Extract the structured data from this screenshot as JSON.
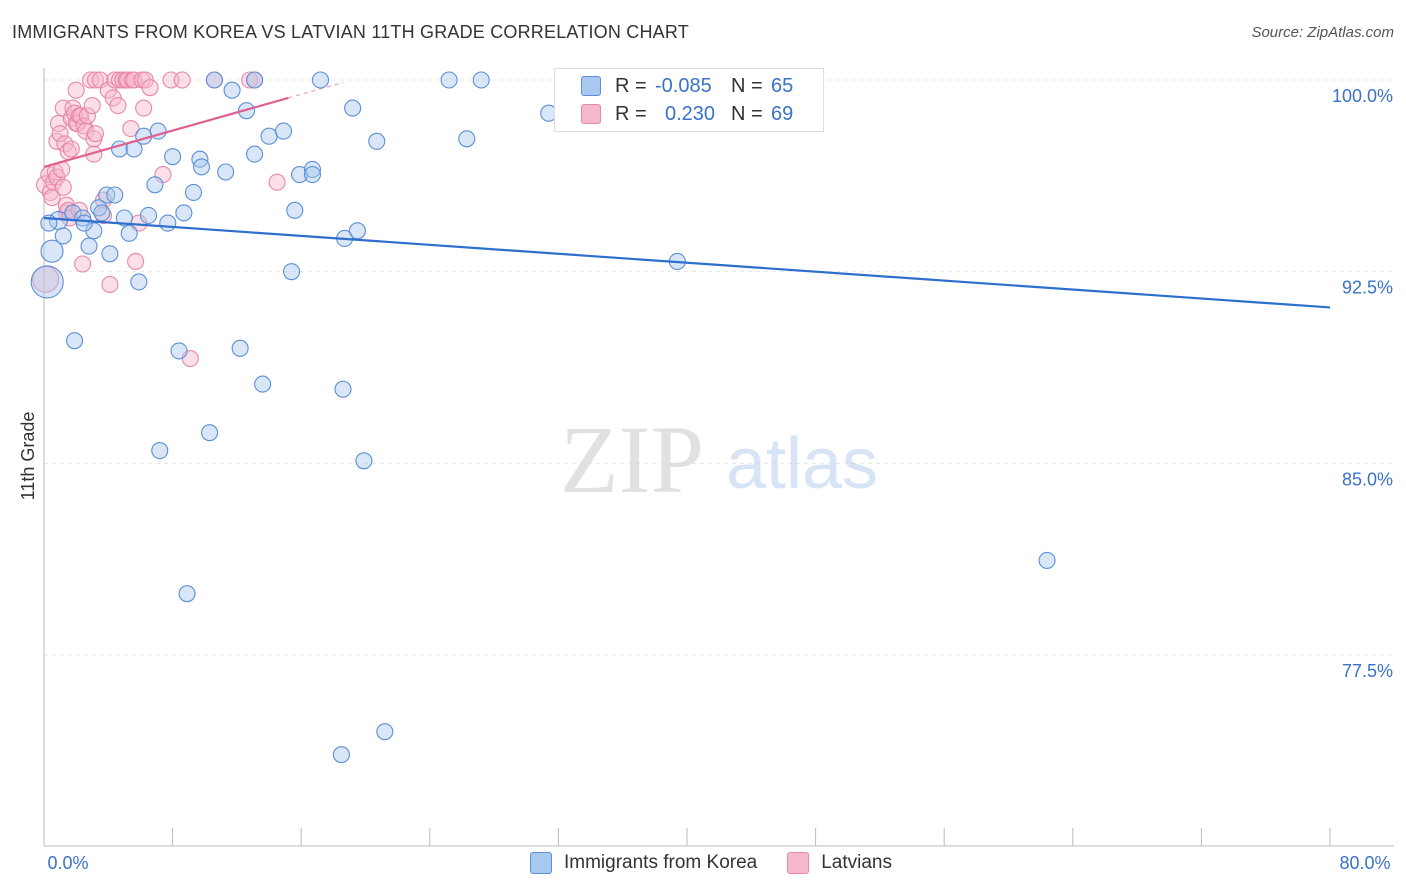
{
  "title": "IMMIGRANTS FROM KOREA VS LATVIAN 11TH GRADE CORRELATION CHART",
  "source": "Source: ZipAtlas.com",
  "watermark": {
    "zip": "ZIP",
    "atlas": "atlas"
  },
  "legend": {
    "series1": {
      "r_label": "R =",
      "r_value": "-0.085",
      "n_label": "N =",
      "n_value": "65"
    },
    "series2": {
      "r_label": "R =",
      "r_value": "0.230",
      "n_label": "N =",
      "n_value": "69"
    }
  },
  "bottom_legend": {
    "series1": "Immigrants from Korea",
    "series2": "Latvians"
  },
  "colors": {
    "korea_fill": "#a8c8f0",
    "korea_stroke": "#5b8fd6",
    "korea_line": "#2e6fcc",
    "latvian_fill": "#f6b8cc",
    "latvian_stroke": "#e888a8",
    "latvian_line": "#e06090",
    "axis_text": "#3a72c8",
    "grid": "#e6e6e6"
  },
  "chart_data": {
    "type": "scatter",
    "title": "IMMIGRANTS FROM KOREA VS LATVIAN 11TH GRADE CORRELATION CHART",
    "xlabel": "",
    "ylabel": "11th Grade",
    "xlim": [
      0,
      80
    ],
    "ylim": [
      71.0,
      101.2
    ],
    "x_tick_labels": [
      "0.0%",
      "80.0%"
    ],
    "y_ticks": [
      77.5,
      85.0,
      92.5,
      100.0
    ],
    "y_tick_labels": [
      "77.5%",
      "85.0%",
      "92.5%",
      "100.0%"
    ],
    "series": [
      {
        "name": "Immigrants from Korea",
        "r": -0.085,
        "n": 65,
        "trend": {
          "x": [
            0,
            80
          ],
          "y": [
            94.6,
            91.1
          ]
        },
        "points": [
          {
            "x": 0.2,
            "y": 92.1,
            "s": 16
          },
          {
            "x": 0.5,
            "y": 93.3,
            "s": 11
          },
          {
            "x": 0.9,
            "y": 94.5,
            "s": 9
          },
          {
            "x": 1.2,
            "y": 93.9,
            "s": 8
          },
          {
            "x": 1.8,
            "y": 94.8,
            "s": 8
          },
          {
            "x": 1.9,
            "y": 89.8,
            "s": 8
          },
          {
            "x": 2.4,
            "y": 94.6,
            "s": 8
          },
          {
            "x": 2.8,
            "y": 93.5,
            "s": 8
          },
          {
            "x": 3.1,
            "y": 94.1,
            "s": 8
          },
          {
            "x": 3.4,
            "y": 95.0,
            "s": 8
          },
          {
            "x": 3.9,
            "y": 95.5,
            "s": 8
          },
          {
            "x": 4.4,
            "y": 95.5,
            "s": 8
          },
          {
            "x": 4.1,
            "y": 93.2,
            "s": 8
          },
          {
            "x": 4.7,
            "y": 97.3,
            "s": 8
          },
          {
            "x": 5.0,
            "y": 94.6,
            "s": 8
          },
          {
            "x": 5.3,
            "y": 94.0,
            "s": 8
          },
          {
            "x": 5.6,
            "y": 97.3,
            "s": 8
          },
          {
            "x": 5.9,
            "y": 92.1,
            "s": 8
          },
          {
            "x": 6.2,
            "y": 97.8,
            "s": 8
          },
          {
            "x": 6.5,
            "y": 94.7,
            "s": 8
          },
          {
            "x": 6.9,
            "y": 95.9,
            "s": 8
          },
          {
            "x": 7.1,
            "y": 98.0,
            "s": 8
          },
          {
            "x": 7.7,
            "y": 94.4,
            "s": 8
          },
          {
            "x": 8.0,
            "y": 97.0,
            "s": 8
          },
          {
            "x": 8.4,
            "y": 89.4,
            "s": 8
          },
          {
            "x": 8.7,
            "y": 94.8,
            "s": 8
          },
          {
            "x": 9.3,
            "y": 95.6,
            "s": 8
          },
          {
            "x": 9.7,
            "y": 96.9,
            "s": 8
          },
          {
            "x": 9.8,
            "y": 96.6,
            "s": 8
          },
          {
            "x": 10.3,
            "y": 86.2,
            "s": 8
          },
          {
            "x": 10.6,
            "y": 100.0,
            "s": 8
          },
          {
            "x": 11.3,
            "y": 96.4,
            "s": 8
          },
          {
            "x": 11.7,
            "y": 99.6,
            "s": 8
          },
          {
            "x": 12.2,
            "y": 89.5,
            "s": 8
          },
          {
            "x": 12.6,
            "y": 98.8,
            "s": 8
          },
          {
            "x": 13.1,
            "y": 97.1,
            "s": 8
          },
          {
            "x": 13.1,
            "y": 100.0,
            "s": 8
          },
          {
            "x": 13.6,
            "y": 88.1,
            "s": 8
          },
          {
            "x": 14.0,
            "y": 97.8,
            "s": 8
          },
          {
            "x": 14.9,
            "y": 98.0,
            "s": 8
          },
          {
            "x": 15.4,
            "y": 92.5,
            "s": 8
          },
          {
            "x": 15.6,
            "y": 94.9,
            "s": 8
          },
          {
            "x": 15.9,
            "y": 96.3,
            "s": 8
          },
          {
            "x": 16.7,
            "y": 96.5,
            "s": 8
          },
          {
            "x": 16.7,
            "y": 96.3,
            "s": 8
          },
          {
            "x": 17.2,
            "y": 100.0,
            "s": 8
          },
          {
            "x": 18.5,
            "y": 73.6,
            "s": 8
          },
          {
            "x": 18.6,
            "y": 87.9,
            "s": 8
          },
          {
            "x": 18.7,
            "y": 93.8,
            "s": 8
          },
          {
            "x": 19.2,
            "y": 98.9,
            "s": 8
          },
          {
            "x": 19.5,
            "y": 94.1,
            "s": 8
          },
          {
            "x": 19.9,
            "y": 85.1,
            "s": 8
          },
          {
            "x": 20.7,
            "y": 97.6,
            "s": 8
          },
          {
            "x": 21.2,
            "y": 74.5,
            "s": 8
          },
          {
            "x": 25.2,
            "y": 100.0,
            "s": 8
          },
          {
            "x": 26.3,
            "y": 97.7,
            "s": 8
          },
          {
            "x": 27.2,
            "y": 100.0,
            "s": 8
          },
          {
            "x": 31.4,
            "y": 98.7,
            "s": 8
          },
          {
            "x": 39.4,
            "y": 92.9,
            "s": 8
          },
          {
            "x": 62.4,
            "y": 81.2,
            "s": 8
          },
          {
            "x": 7.2,
            "y": 85.5,
            "s": 8
          },
          {
            "x": 8.9,
            "y": 79.9,
            "s": 8
          },
          {
            "x": 0.3,
            "y": 94.4,
            "s": 8
          },
          {
            "x": 3.6,
            "y": 94.8,
            "s": 8
          },
          {
            "x": 2.5,
            "y": 94.4,
            "s": 8
          }
        ]
      },
      {
        "name": "Latvians",
        "r": 0.23,
        "n": 69,
        "trend": {
          "x": [
            0,
            15.2
          ],
          "y": [
            96.6,
            99.3
          ]
        },
        "trend_ext": {
          "x": [
            15.2,
            18.6
          ],
          "y": [
            99.3,
            99.9
          ]
        },
        "points": [
          {
            "x": 0.1,
            "y": 92.2,
            "s": 13
          },
          {
            "x": 0.1,
            "y": 95.9,
            "s": 9
          },
          {
            "x": 0.3,
            "y": 96.3,
            "s": 8
          },
          {
            "x": 0.4,
            "y": 95.6,
            "s": 8
          },
          {
            "x": 0.5,
            "y": 95.4,
            "s": 8
          },
          {
            "x": 0.6,
            "y": 96.0,
            "s": 8
          },
          {
            "x": 0.7,
            "y": 96.4,
            "s": 8
          },
          {
            "x": 0.8,
            "y": 97.6,
            "s": 8
          },
          {
            "x": 0.8,
            "y": 96.2,
            "s": 8
          },
          {
            "x": 0.9,
            "y": 98.3,
            "s": 8
          },
          {
            "x": 1.0,
            "y": 97.9,
            "s": 8
          },
          {
            "x": 1.1,
            "y": 96.5,
            "s": 8
          },
          {
            "x": 1.2,
            "y": 98.9,
            "s": 8
          },
          {
            "x": 1.2,
            "y": 95.8,
            "s": 8
          },
          {
            "x": 1.3,
            "y": 97.5,
            "s": 8
          },
          {
            "x": 1.4,
            "y": 95.1,
            "s": 8
          },
          {
            "x": 1.4,
            "y": 94.8,
            "s": 8
          },
          {
            "x": 1.5,
            "y": 97.2,
            "s": 8
          },
          {
            "x": 1.5,
            "y": 94.9,
            "s": 8
          },
          {
            "x": 1.6,
            "y": 94.6,
            "s": 8
          },
          {
            "x": 1.7,
            "y": 98.5,
            "s": 8
          },
          {
            "x": 1.7,
            "y": 97.3,
            "s": 8
          },
          {
            "x": 1.8,
            "y": 98.9,
            "s": 8
          },
          {
            "x": 1.9,
            "y": 98.7,
            "s": 8
          },
          {
            "x": 2.0,
            "y": 99.6,
            "s": 8
          },
          {
            "x": 2.0,
            "y": 98.3,
            "s": 8
          },
          {
            "x": 2.1,
            "y": 98.3,
            "s": 8
          },
          {
            "x": 2.2,
            "y": 98.6,
            "s": 8
          },
          {
            "x": 2.2,
            "y": 94.9,
            "s": 8
          },
          {
            "x": 2.3,
            "y": 98.6,
            "s": 8
          },
          {
            "x": 2.4,
            "y": 92.8,
            "s": 8
          },
          {
            "x": 2.5,
            "y": 98.2,
            "s": 8
          },
          {
            "x": 2.6,
            "y": 98.0,
            "s": 8
          },
          {
            "x": 2.7,
            "y": 98.6,
            "s": 8
          },
          {
            "x": 2.9,
            "y": 100.0,
            "s": 8
          },
          {
            "x": 3.0,
            "y": 99.0,
            "s": 8
          },
          {
            "x": 3.1,
            "y": 97.1,
            "s": 8
          },
          {
            "x": 3.1,
            "y": 97.7,
            "s": 8
          },
          {
            "x": 3.2,
            "y": 97.9,
            "s": 8
          },
          {
            "x": 3.2,
            "y": 100.0,
            "s": 8
          },
          {
            "x": 3.5,
            "y": 100.0,
            "s": 8
          },
          {
            "x": 3.7,
            "y": 95.3,
            "s": 8
          },
          {
            "x": 3.7,
            "y": 94.7,
            "s": 8
          },
          {
            "x": 4.0,
            "y": 99.6,
            "s": 8
          },
          {
            "x": 4.1,
            "y": 92.0,
            "s": 8
          },
          {
            "x": 4.3,
            "y": 99.3,
            "s": 8
          },
          {
            "x": 4.4,
            "y": 100.0,
            "s": 8
          },
          {
            "x": 4.6,
            "y": 99.0,
            "s": 8
          },
          {
            "x": 4.7,
            "y": 100.0,
            "s": 8
          },
          {
            "x": 4.9,
            "y": 100.0,
            "s": 8
          },
          {
            "x": 5.1,
            "y": 100.0,
            "s": 8
          },
          {
            "x": 5.2,
            "y": 100.0,
            "s": 8
          },
          {
            "x": 5.4,
            "y": 98.1,
            "s": 8
          },
          {
            "x": 5.5,
            "y": 100.0,
            "s": 8
          },
          {
            "x": 5.6,
            "y": 100.0,
            "s": 8
          },
          {
            "x": 5.7,
            "y": 92.9,
            "s": 8
          },
          {
            "x": 5.9,
            "y": 94.4,
            "s": 8
          },
          {
            "x": 6.1,
            "y": 100.0,
            "s": 8
          },
          {
            "x": 6.2,
            "y": 98.9,
            "s": 8
          },
          {
            "x": 6.3,
            "y": 100.0,
            "s": 8
          },
          {
            "x": 6.6,
            "y": 99.7,
            "s": 8
          },
          {
            "x": 7.4,
            "y": 96.3,
            "s": 8
          },
          {
            "x": 7.9,
            "y": 100.0,
            "s": 8
          },
          {
            "x": 8.6,
            "y": 100.0,
            "s": 8
          },
          {
            "x": 9.1,
            "y": 89.1,
            "s": 8
          },
          {
            "x": 10.6,
            "y": 100.0,
            "s": 8
          },
          {
            "x": 12.8,
            "y": 100.0,
            "s": 8
          },
          {
            "x": 14.5,
            "y": 96.0,
            "s": 8
          },
          {
            "x": 13.1,
            "y": 100.0,
            "s": 8
          }
        ]
      }
    ]
  }
}
